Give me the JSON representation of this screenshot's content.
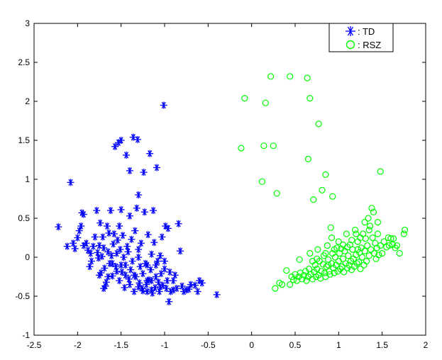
{
  "chart_data": {
    "type": "scatter",
    "xlim": [
      -2.5,
      2
    ],
    "ylim": [
      -1,
      3
    ],
    "x_ticks": [
      "-2.5",
      "-2",
      "-1.5",
      "-1",
      "-0.5",
      "0",
      "0.5",
      "1",
      "1.5",
      "2"
    ],
    "y_ticks": [
      "-1",
      "-0.5",
      "0",
      "0.5",
      "1",
      "1.5",
      "2",
      "2.5",
      "3"
    ],
    "grid": false,
    "legend_position": "top-right",
    "series": [
      {
        "name": ": TD",
        "marker": "asterisk",
        "color": "#0000ff",
        "points": [
          [
            -2.22,
            0.39
          ],
          [
            -2.12,
            0.14
          ],
          [
            -2.08,
            0.96
          ],
          [
            -2.05,
            0.18
          ],
          [
            -2.03,
            0.11
          ],
          [
            -2.0,
            0.25
          ],
          [
            -1.98,
            0.34
          ],
          [
            -1.96,
            0.4
          ],
          [
            -1.95,
            0.57
          ],
          [
            -1.93,
            0.55
          ],
          [
            -1.93,
            0.15
          ],
          [
            -1.9,
            0.18
          ],
          [
            -1.88,
            0.09
          ],
          [
            -1.86,
            -0.12
          ],
          [
            -1.84,
            -0.05
          ],
          [
            -1.82,
            0.14
          ],
          [
            -1.8,
            0.26
          ],
          [
            -1.78,
            0.6
          ],
          [
            -1.77,
            0.06
          ],
          [
            -1.76,
            -0.01
          ],
          [
            -1.75,
            0.15
          ],
          [
            -1.74,
            0.44
          ],
          [
            -1.73,
            -0.2
          ],
          [
            -1.72,
            0.01
          ],
          [
            -1.71,
            0.26
          ],
          [
            -1.7,
            0.12
          ],
          [
            -1.69,
            -0.14
          ],
          [
            -1.68,
            -0.37
          ],
          [
            -1.67,
            -0.32
          ],
          [
            -1.66,
            0.4
          ],
          [
            -1.65,
            0.07
          ],
          [
            -1.64,
            0.31
          ],
          [
            -1.63,
            -0.08
          ],
          [
            -1.62,
            0.6
          ],
          [
            -1.61,
            0.02
          ],
          [
            -1.6,
            -0.24
          ],
          [
            -1.59,
            0.17
          ],
          [
            -1.58,
            0.3
          ],
          [
            -1.57,
            1.42
          ],
          [
            -1.56,
            -0.12
          ],
          [
            -1.55,
            0.05
          ],
          [
            -1.54,
            0.22
          ],
          [
            -1.53,
            1.47
          ],
          [
            -1.52,
            0.4
          ],
          [
            -1.52,
            -0.3
          ],
          [
            -1.51,
            0.1
          ],
          [
            -1.5,
            0.61
          ],
          [
            -1.5,
            1.5
          ],
          [
            -1.49,
            -0.19
          ],
          [
            -1.48,
            0.28
          ],
          [
            -1.47,
            0.0
          ],
          [
            -1.46,
            -0.39
          ],
          [
            -1.45,
            -0.1
          ],
          [
            -1.44,
            1.31
          ],
          [
            -1.43,
            0.14
          ],
          [
            -1.42,
            0.07
          ],
          [
            -1.41,
            -0.28
          ],
          [
            -1.4,
            0.53
          ],
          [
            -1.4,
            1.11
          ],
          [
            -1.39,
            -0.16
          ],
          [
            -1.38,
            0.23
          ],
          [
            -1.37,
            -0.05
          ],
          [
            -1.36,
            1.54
          ],
          [
            -1.35,
            -0.44
          ],
          [
            -1.34,
            0.34
          ],
          [
            -1.33,
            -0.25
          ],
          [
            -1.32,
            0.63
          ],
          [
            -1.31,
            1.51
          ],
          [
            -1.3,
            0.8
          ],
          [
            -1.3,
            0.0
          ],
          [
            -1.29,
            -0.33
          ],
          [
            -1.28,
            -0.12
          ],
          [
            -1.27,
            0.18
          ],
          [
            -1.26,
            -0.4
          ],
          [
            -1.25,
            -0.21
          ],
          [
            -1.24,
            1.09
          ],
          [
            -1.23,
            0.58
          ],
          [
            -1.22,
            -0.08
          ],
          [
            -1.21,
            -0.35
          ],
          [
            -1.2,
            -0.44
          ],
          [
            -1.19,
            0.29
          ],
          [
            -1.18,
            -0.29
          ],
          [
            -1.17,
            1.33
          ],
          [
            -1.16,
            -0.16
          ],
          [
            -1.15,
            0.04
          ],
          [
            -1.14,
            -0.46
          ],
          [
            -1.13,
            0.6
          ],
          [
            -1.12,
            0.19
          ],
          [
            -1.11,
            -0.39
          ],
          [
            -1.1,
            -0.25
          ],
          [
            -1.09,
            1.15
          ],
          [
            -1.08,
            -0.05
          ],
          [
            -1.07,
            -0.32
          ],
          [
            -1.06,
            -0.44
          ],
          [
            -1.05,
            0.02
          ],
          [
            -1.04,
            -0.21
          ],
          [
            -1.03,
            0.26
          ],
          [
            -1.02,
            -0.36
          ],
          [
            -1.01,
            1.95
          ],
          [
            -1.0,
            -0.15
          ],
          [
            -0.99,
            0.4
          ],
          [
            -0.98,
            -0.4
          ],
          [
            -0.97,
            -0.3
          ],
          [
            -0.96,
            0.37
          ],
          [
            -0.95,
            -0.57
          ],
          [
            -0.94,
            -0.19
          ],
          [
            -0.93,
            -0.44
          ],
          [
            -0.9,
            -0.3
          ],
          [
            -0.88,
            -0.23
          ],
          [
            -0.86,
            -0.4
          ],
          [
            -0.84,
            0.43
          ],
          [
            -0.82,
            0.08
          ],
          [
            -0.8,
            -0.37
          ],
          [
            -0.78,
            -0.44
          ],
          [
            -0.75,
            -0.42
          ],
          [
            -0.72,
            -0.41
          ],
          [
            -0.7,
            -0.35
          ],
          [
            -0.65,
            -0.36
          ],
          [
            -0.62,
            -0.44
          ],
          [
            -0.6,
            -0.3
          ],
          [
            -0.57,
            -0.33
          ],
          [
            -0.4,
            -0.48
          ],
          [
            -1.15,
            -0.42
          ],
          [
            -1.25,
            -0.43
          ],
          [
            -1.35,
            -0.23
          ],
          [
            -1.45,
            -0.23
          ],
          [
            -1.55,
            -0.18
          ],
          [
            -1.65,
            -0.25
          ],
          [
            -1.75,
            -0.23
          ],
          [
            -1.85,
            0.05
          ],
          [
            -1.2,
            -0.1
          ],
          [
            -1.1,
            -0.1
          ],
          [
            -1.0,
            -0.05
          ],
          [
            -1.05,
            -0.38
          ],
          [
            -1.15,
            -0.3
          ],
          [
            -1.3,
            -0.38
          ],
          [
            -1.4,
            -0.35
          ],
          [
            -1.6,
            -0.08
          ],
          [
            -1.7,
            -0.4
          ],
          [
            -1.5,
            -0.1
          ],
          [
            -1.3,
            0.1
          ],
          [
            -1.2,
            -0.3
          ],
          [
            -0.9,
            -0.42
          ]
        ]
      },
      {
        "name": ": RSZ",
        "marker": "circle",
        "color": "#00ff00",
        "points": [
          [
            -0.12,
            1.4
          ],
          [
            -0.08,
            2.04
          ],
          [
            0.12,
            0.97
          ],
          [
            0.14,
            1.43
          ],
          [
            0.16,
            1.98
          ],
          [
            0.22,
            2.32
          ],
          [
            0.25,
            1.43
          ],
          [
            0.29,
            0.82
          ],
          [
            0.44,
            2.32
          ],
          [
            0.64,
            2.3
          ],
          [
            0.65,
            1.26
          ],
          [
            0.67,
            2.04
          ],
          [
            0.71,
            0.74
          ],
          [
            0.77,
            1.71
          ],
          [
            0.81,
            0.86
          ],
          [
            0.85,
            1.06
          ],
          [
            0.93,
            0.78
          ],
          [
            1.48,
            1.1
          ],
          [
            0.27,
            -0.4
          ],
          [
            0.32,
            -0.33
          ],
          [
            0.35,
            -0.35
          ],
          [
            0.4,
            -0.17
          ],
          [
            0.44,
            -0.35
          ],
          [
            0.46,
            -0.25
          ],
          [
            0.48,
            -0.29
          ],
          [
            0.5,
            -0.22
          ],
          [
            0.52,
            -0.3
          ],
          [
            0.54,
            -0.25
          ],
          [
            0.55,
            -0.03
          ],
          [
            0.56,
            -0.2
          ],
          [
            0.58,
            -0.28
          ],
          [
            0.6,
            -0.23
          ],
          [
            0.62,
            -0.18
          ],
          [
            0.63,
            -0.3
          ],
          [
            0.65,
            -0.25
          ],
          [
            0.66,
            -0.15
          ],
          [
            0.67,
            0.05
          ],
          [
            0.68,
            -0.22
          ],
          [
            0.7,
            -0.28
          ],
          [
            0.72,
            -0.19
          ],
          [
            0.73,
            -0.1
          ],
          [
            0.74,
            -0.25
          ],
          [
            0.75,
            -0.15
          ],
          [
            0.76,
            0.1
          ],
          [
            0.77,
            -0.23
          ],
          [
            0.78,
            -0.05
          ],
          [
            0.79,
            -0.27
          ],
          [
            0.8,
            -0.18
          ],
          [
            0.82,
            -0.09
          ],
          [
            0.83,
            0.02
          ],
          [
            0.84,
            -0.2
          ],
          [
            0.85,
            -0.25
          ],
          [
            0.86,
            -0.12
          ],
          [
            0.87,
            0.15
          ],
          [
            0.88,
            -0.03
          ],
          [
            0.89,
            -0.18
          ],
          [
            0.9,
            -0.22
          ],
          [
            0.91,
            0.38
          ],
          [
            0.92,
            -0.08
          ],
          [
            0.93,
            0.05
          ],
          [
            0.94,
            -0.14
          ],
          [
            0.95,
            -0.2
          ],
          [
            0.96,
            0.0
          ],
          [
            0.97,
            -0.1
          ],
          [
            0.98,
            0.12
          ],
          [
            0.99,
            -0.18
          ],
          [
            1.0,
            -0.05
          ],
          [
            1.01,
            0.05
          ],
          [
            1.02,
            -0.15
          ],
          [
            1.03,
            0.11
          ],
          [
            1.04,
            -0.12
          ],
          [
            1.05,
            -0.02
          ],
          [
            1.06,
            -0.19
          ],
          [
            1.07,
            0.08
          ],
          [
            1.08,
            -0.08
          ],
          [
            1.09,
            0.3
          ],
          [
            1.1,
            -0.14
          ],
          [
            1.11,
            0.02
          ],
          [
            1.12,
            -0.1
          ],
          [
            1.13,
            0.16
          ],
          [
            1.14,
            -0.05
          ],
          [
            1.15,
            -0.16
          ],
          [
            1.16,
            0.1
          ],
          [
            1.17,
            -0.02
          ],
          [
            1.18,
            -0.12
          ],
          [
            1.19,
            0.35
          ],
          [
            1.2,
            0.03
          ],
          [
            1.21,
            -0.08
          ],
          [
            1.22,
            0.2
          ],
          [
            1.23,
            -0.06
          ],
          [
            1.24,
            0.06
          ],
          [
            1.25,
            -0.15
          ],
          [
            1.26,
            0.12
          ],
          [
            1.27,
            0.0
          ],
          [
            1.28,
            0.3
          ],
          [
            1.29,
            -0.1
          ],
          [
            1.3,
            0.08
          ],
          [
            1.31,
            0.24
          ],
          [
            1.32,
            -0.05
          ],
          [
            1.33,
            0.15
          ],
          [
            1.34,
            0.5
          ],
          [
            1.35,
            0.02
          ],
          [
            1.36,
            0.4
          ],
          [
            1.37,
            0.1
          ],
          [
            1.38,
            0.63
          ],
          [
            1.39,
            0.25
          ],
          [
            1.4,
            0.58
          ],
          [
            1.41,
            0.05
          ],
          [
            1.42,
            0.18
          ],
          [
            1.43,
            -0.02
          ],
          [
            1.44,
            0.12
          ],
          [
            1.45,
            0.3
          ],
          [
            1.46,
            0.03
          ],
          [
            1.48,
            0.15
          ],
          [
            1.5,
            0.05
          ],
          [
            1.52,
            0.2
          ],
          [
            1.55,
            0.13
          ],
          [
            1.58,
            0.15
          ],
          [
            1.6,
            0.24
          ],
          [
            1.63,
            0.24
          ],
          [
            1.65,
            0.12
          ],
          [
            1.67,
            0.15
          ],
          [
            1.7,
            0.05
          ],
          [
            1.75,
            0.3
          ],
          [
            1.76,
            0.35
          ],
          [
            1.22,
            0.1
          ],
          [
            1.1,
            0.13
          ],
          [
            1.0,
            0.2
          ],
          [
            0.95,
            0.1
          ],
          [
            0.85,
            0.05
          ],
          [
            0.7,
            -0.05
          ],
          [
            1.05,
            0.16
          ],
          [
            1.15,
            0.22
          ],
          [
            1.25,
            0.25
          ],
          [
            1.35,
            0.35
          ],
          [
            1.45,
            0.45
          ],
          [
            1.57,
            0.25
          ],
          [
            1.3,
            0.45
          ],
          [
            1.62,
            0.16
          ],
          [
            1.2,
            0.3
          ],
          [
            0.88,
            -0.1
          ],
          [
            0.75,
            -0.02
          ],
          [
            0.92,
            0.25
          ]
        ]
      }
    ]
  }
}
